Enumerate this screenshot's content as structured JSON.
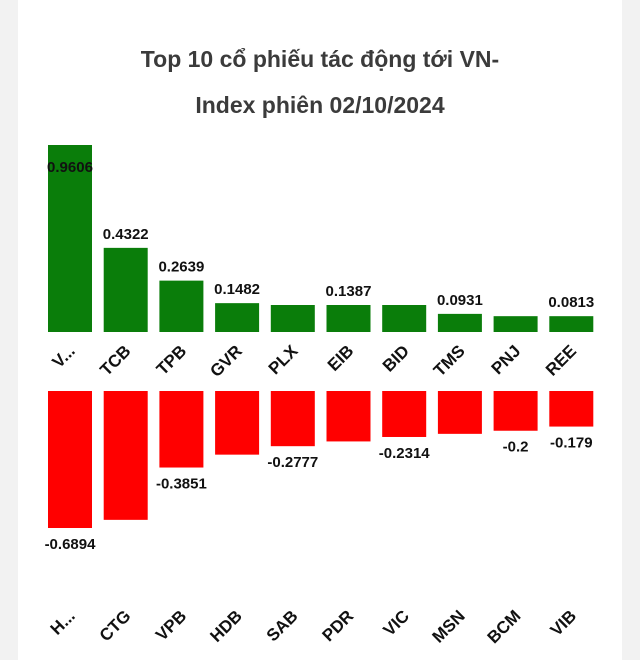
{
  "title_line1": "Top 10 cổ phiếu tác động tới VN-",
  "title_line2": "Index phiên 02/10/2024",
  "colors": {
    "positive": "#0a7d0a",
    "negative": "#ff0000"
  },
  "chart_data": [
    {
      "type": "bar",
      "series_sign": "positive",
      "categories": [
        "V...",
        "TCB",
        "TPB",
        "GVR",
        "PLX",
        "EIB",
        "BID",
        "TMS",
        "PNJ",
        "REE"
      ],
      "values": [
        0.9606,
        0.4322,
        0.2639,
        0.1482,
        0.1387,
        0.1387,
        0.1387,
        0.0931,
        0.0813,
        0.0813
      ],
      "labels": [
        "0.9606",
        "0.4322",
        "0.2639",
        "0.1482",
        "",
        "0.1387",
        "",
        "0.0931",
        "",
        "0.0813"
      ],
      "ylim": [
        0,
        0.9606
      ]
    },
    {
      "type": "bar",
      "series_sign": "negative",
      "categories": [
        "H...",
        "CTG",
        "VPB",
        "HDB",
        "SAB",
        "PDR",
        "VIC",
        "MSN",
        "BCM",
        "VIB"
      ],
      "values": [
        -0.6894,
        -0.6484,
        -0.3851,
        -0.3203,
        -0.2777,
        -0.2538,
        -0.2314,
        -0.2156,
        -0.2,
        -0.179
      ],
      "labels": [
        "-0.6894",
        "",
        "-0.3851",
        "",
        "-0.2777",
        "",
        "-0.2314",
        "",
        "-0.2",
        "-0.179"
      ],
      "ylim": [
        -0.6894,
        0
      ]
    }
  ]
}
